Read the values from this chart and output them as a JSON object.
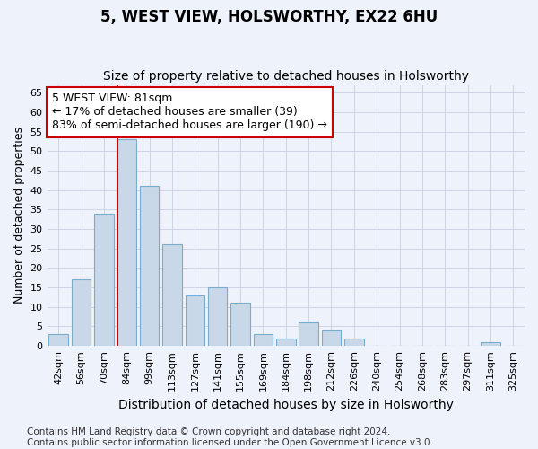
{
  "title": "5, WEST VIEW, HOLSWORTHY, EX22 6HU",
  "subtitle": "Size of property relative to detached houses in Holsworthy",
  "xlabel": "Distribution of detached houses by size in Holsworthy",
  "ylabel": "Number of detached properties",
  "categories": [
    "42sqm",
    "56sqm",
    "70sqm",
    "84sqm",
    "99sqm",
    "113sqm",
    "127sqm",
    "141sqm",
    "155sqm",
    "169sqm",
    "184sqm",
    "198sqm",
    "212sqm",
    "226sqm",
    "240sqm",
    "254sqm",
    "268sqm",
    "283sqm",
    "297sqm",
    "311sqm",
    "325sqm"
  ],
  "values": [
    3,
    17,
    34,
    53,
    41,
    26,
    13,
    15,
    11,
    3,
    2,
    6,
    4,
    2,
    0,
    0,
    0,
    0,
    0,
    1,
    0
  ],
  "bar_color": "#c8d8e8",
  "bar_edge_color": "#7aaccc",
  "vline_color": "#cc0000",
  "annotation_line1": "5 WEST VIEW: 81sqm",
  "annotation_line2": "← 17% of detached houses are smaller (39)",
  "annotation_line3": "83% of semi-detached houses are larger (190) →",
  "annotation_box_color": "white",
  "annotation_box_edge": "#cc0000",
  "ylim": [
    0,
    67
  ],
  "yticks": [
    0,
    5,
    10,
    15,
    20,
    25,
    30,
    35,
    40,
    45,
    50,
    55,
    60,
    65
  ],
  "footer": "Contains HM Land Registry data © Crown copyright and database right 2024.\nContains public sector information licensed under the Open Government Licence v3.0.",
  "bg_color": "#eef2fb",
  "grid_color": "#c8d0e0",
  "title_fontsize": 12,
  "subtitle_fontsize": 10,
  "xlabel_fontsize": 10,
  "ylabel_fontsize": 9,
  "tick_fontsize": 8,
  "annotation_fontsize": 9,
  "footer_fontsize": 7.5
}
